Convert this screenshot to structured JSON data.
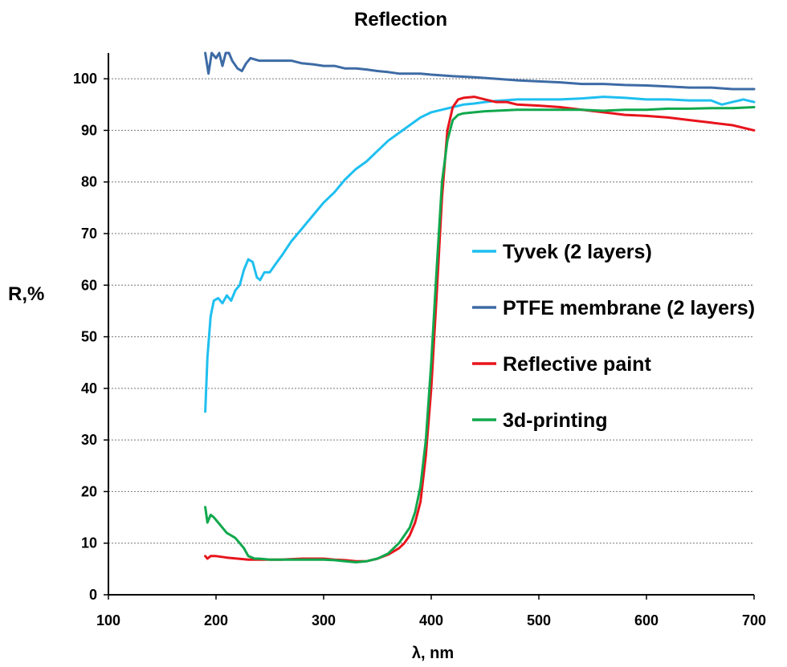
{
  "chart_data": {
    "type": "line",
    "title": "Reflection",
    "xlabel": "λ, nm",
    "ylabel": "R,%",
    "xlim": [
      100,
      700
    ],
    "ylim": [
      0,
      105
    ],
    "xticks": [
      100,
      200,
      300,
      400,
      500,
      600,
      700
    ],
    "yticks": [
      0,
      10,
      20,
      30,
      40,
      50,
      60,
      70,
      80,
      90,
      100
    ],
    "grid": true,
    "legend_position": "right",
    "series": [
      {
        "name": "Tyvek (2 layers)",
        "color": "#1ebff0",
        "points": [
          [
            190,
            35.5
          ],
          [
            192,
            46
          ],
          [
            195,
            54
          ],
          [
            198,
            57
          ],
          [
            202,
            57.5
          ],
          [
            206,
            56.5
          ],
          [
            210,
            58
          ],
          [
            214,
            57
          ],
          [
            218,
            59
          ],
          [
            222,
            60
          ],
          [
            226,
            63
          ],
          [
            230,
            65
          ],
          [
            234,
            64.5
          ],
          [
            238,
            61.5
          ],
          [
            241,
            61
          ],
          [
            245,
            62.5
          ],
          [
            250,
            62.5
          ],
          [
            255,
            64
          ],
          [
            262,
            66
          ],
          [
            270,
            68.5
          ],
          [
            280,
            71
          ],
          [
            290,
            73.5
          ],
          [
            300,
            76
          ],
          [
            310,
            78
          ],
          [
            320,
            80.5
          ],
          [
            330,
            82.5
          ],
          [
            340,
            84
          ],
          [
            350,
            86
          ],
          [
            360,
            88
          ],
          [
            370,
            89.5
          ],
          [
            380,
            91
          ],
          [
            390,
            92.5
          ],
          [
            400,
            93.5
          ],
          [
            410,
            94
          ],
          [
            420,
            94.5
          ],
          [
            430,
            95
          ],
          [
            440,
            95.2
          ],
          [
            450,
            95.5
          ],
          [
            460,
            95.7
          ],
          [
            480,
            96
          ],
          [
            500,
            96
          ],
          [
            520,
            96
          ],
          [
            540,
            96.2
          ],
          [
            560,
            96.5
          ],
          [
            580,
            96.3
          ],
          [
            600,
            96
          ],
          [
            620,
            96
          ],
          [
            640,
            95.8
          ],
          [
            660,
            95.8
          ],
          [
            670,
            95
          ],
          [
            680,
            95.5
          ],
          [
            690,
            96
          ],
          [
            700,
            95.5
          ]
        ]
      },
      {
        "name": "PTFE membrane (2 layers)",
        "color": "#3d6ba5",
        "points": [
          [
            190,
            105
          ],
          [
            193,
            101
          ],
          [
            196,
            105
          ],
          [
            200,
            104
          ],
          [
            203,
            105
          ],
          [
            206,
            102.5
          ],
          [
            209,
            105
          ],
          [
            212,
            105
          ],
          [
            215,
            103.5
          ],
          [
            220,
            102
          ],
          [
            224,
            101.5
          ],
          [
            228,
            103
          ],
          [
            232,
            104
          ],
          [
            240,
            103.5
          ],
          [
            250,
            103.5
          ],
          [
            260,
            103.5
          ],
          [
            270,
            103.5
          ],
          [
            280,
            103
          ],
          [
            290,
            102.8
          ],
          [
            300,
            102.5
          ],
          [
            310,
            102.5
          ],
          [
            320,
            102
          ],
          [
            330,
            102
          ],
          [
            340,
            101.8
          ],
          [
            350,
            101.5
          ],
          [
            360,
            101.3
          ],
          [
            370,
            101
          ],
          [
            380,
            101
          ],
          [
            390,
            101
          ],
          [
            400,
            100.8
          ],
          [
            420,
            100.5
          ],
          [
            440,
            100.3
          ],
          [
            460,
            100
          ],
          [
            480,
            99.7
          ],
          [
            500,
            99.5
          ],
          [
            520,
            99.3
          ],
          [
            540,
            99
          ],
          [
            560,
            99
          ],
          [
            580,
            98.8
          ],
          [
            600,
            98.7
          ],
          [
            620,
            98.5
          ],
          [
            640,
            98.3
          ],
          [
            660,
            98.3
          ],
          [
            680,
            98
          ],
          [
            700,
            98
          ]
        ]
      },
      {
        "name": "Reflective paint",
        "color": "#e8141c",
        "points": [
          [
            190,
            7.5
          ],
          [
            192,
            7
          ],
          [
            195,
            7.5
          ],
          [
            200,
            7.5
          ],
          [
            210,
            7.2
          ],
          [
            220,
            7
          ],
          [
            230,
            6.8
          ],
          [
            240,
            6.8
          ],
          [
            250,
            6.8
          ],
          [
            260,
            6.8
          ],
          [
            270,
            6.9
          ],
          [
            280,
            7
          ],
          [
            290,
            7
          ],
          [
            300,
            7
          ],
          [
            310,
            6.8
          ],
          [
            320,
            6.7
          ],
          [
            330,
            6.5
          ],
          [
            340,
            6.5
          ],
          [
            350,
            7
          ],
          [
            360,
            7.8
          ],
          [
            370,
            9
          ],
          [
            375,
            10
          ],
          [
            380,
            11.5
          ],
          [
            385,
            14
          ],
          [
            390,
            18
          ],
          [
            395,
            27
          ],
          [
            400,
            40
          ],
          [
            405,
            58
          ],
          [
            410,
            77
          ],
          [
            415,
            90
          ],
          [
            420,
            94.5
          ],
          [
            425,
            96
          ],
          [
            430,
            96.3
          ],
          [
            440,
            96.5
          ],
          [
            450,
            96
          ],
          [
            460,
            95.5
          ],
          [
            470,
            95.5
          ],
          [
            480,
            95
          ],
          [
            500,
            94.8
          ],
          [
            520,
            94.5
          ],
          [
            540,
            94
          ],
          [
            560,
            93.5
          ],
          [
            580,
            93
          ],
          [
            600,
            92.8
          ],
          [
            620,
            92.5
          ],
          [
            640,
            92
          ],
          [
            660,
            91.5
          ],
          [
            680,
            91
          ],
          [
            700,
            90
          ]
        ]
      },
      {
        "name": "3d-printing",
        "color": "#10a84c",
        "points": [
          [
            190,
            17
          ],
          [
            192,
            14
          ],
          [
            195,
            15.5
          ],
          [
            198,
            15
          ],
          [
            202,
            14
          ],
          [
            206,
            13
          ],
          [
            210,
            12
          ],
          [
            214,
            11.5
          ],
          [
            218,
            11
          ],
          [
            222,
            10
          ],
          [
            226,
            9
          ],
          [
            230,
            7.5
          ],
          [
            236,
            7
          ],
          [
            240,
            7
          ],
          [
            250,
            6.8
          ],
          [
            260,
            6.8
          ],
          [
            270,
            6.8
          ],
          [
            280,
            6.8
          ],
          [
            290,
            6.8
          ],
          [
            300,
            6.8
          ],
          [
            310,
            6.7
          ],
          [
            320,
            6.5
          ],
          [
            330,
            6.3
          ],
          [
            340,
            6.5
          ],
          [
            350,
            7
          ],
          [
            360,
            8
          ],
          [
            370,
            10
          ],
          [
            375,
            11.5
          ],
          [
            380,
            13
          ],
          [
            385,
            16
          ],
          [
            390,
            21
          ],
          [
            395,
            30
          ],
          [
            400,
            45
          ],
          [
            405,
            63
          ],
          [
            410,
            80
          ],
          [
            415,
            88
          ],
          [
            420,
            92
          ],
          [
            425,
            93
          ],
          [
            430,
            93.3
          ],
          [
            440,
            93.5
          ],
          [
            450,
            93.7
          ],
          [
            460,
            93.8
          ],
          [
            480,
            94
          ],
          [
            500,
            94
          ],
          [
            520,
            94
          ],
          [
            540,
            94
          ],
          [
            560,
            93.8
          ],
          [
            580,
            94
          ],
          [
            600,
            94
          ],
          [
            620,
            94.2
          ],
          [
            640,
            94.2
          ],
          [
            660,
            94.3
          ],
          [
            680,
            94.3
          ],
          [
            700,
            94.5
          ]
        ]
      }
    ]
  }
}
